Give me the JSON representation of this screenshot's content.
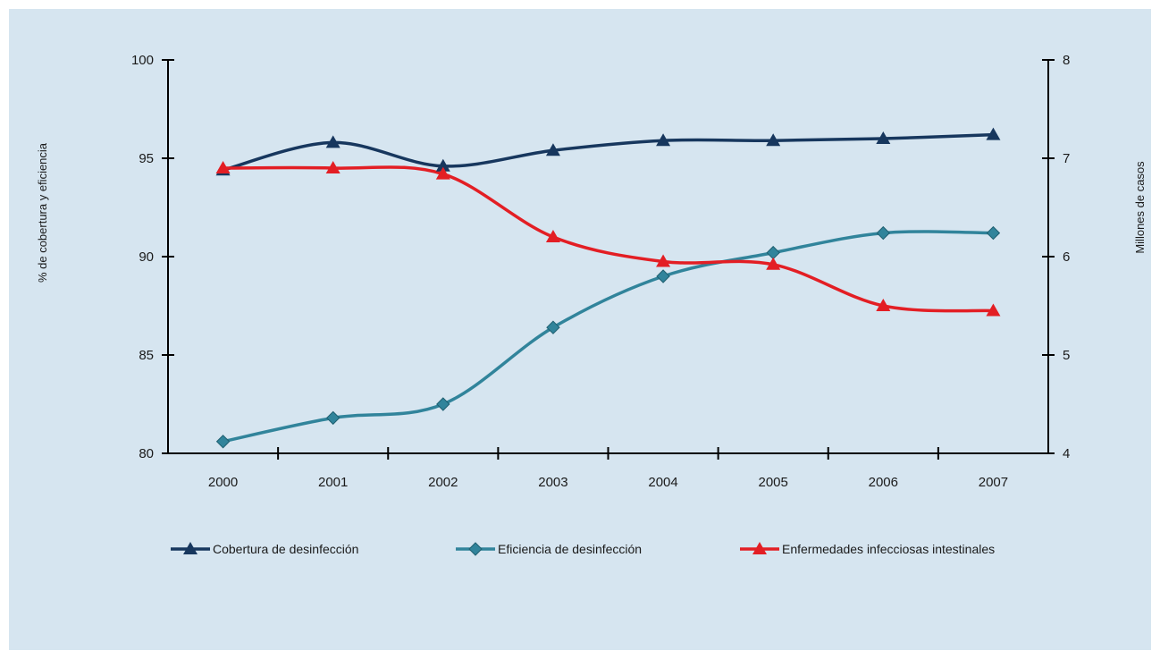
{
  "chart_data": {
    "type": "line",
    "categories": [
      "2000",
      "2001",
      "2002",
      "2003",
      "2004",
      "2005",
      "2006",
      "2007"
    ],
    "y_left": {
      "label": "% de cobertura y eficiencia",
      "range": [
        80,
        100
      ],
      "ticks": [
        "80",
        "85",
        "90",
        "95",
        "100"
      ]
    },
    "y_right": {
      "label": "Millones de casos",
      "range": [
        4,
        8
      ],
      "ticks": [
        "4",
        "5",
        "6",
        "7",
        "8"
      ]
    },
    "grid": false,
    "legend_position": "bottom",
    "series": [
      {
        "name": "Cobertura de desinfección",
        "axis": "left",
        "color": "#17375e",
        "marker": "triangle",
        "values": [
          94.4,
          95.8,
          94.6,
          95.4,
          95.9,
          95.9,
          96.0,
          96.2
        ]
      },
      {
        "name": "Eficiencia de desinfección",
        "axis": "left",
        "color": "#31849b",
        "marker": "diamond",
        "values": [
          80.6,
          81.8,
          82.5,
          86.4,
          89.0,
          90.2,
          91.2,
          91.2
        ]
      },
      {
        "name": "Enfermedades  infecciosas  intestinales",
        "axis": "right",
        "color": "#e31e24",
        "marker": "triangle",
        "values": [
          6.9,
          6.9,
          6.84,
          6.2,
          5.95,
          5.92,
          5.5,
          5.45
        ]
      }
    ]
  }
}
